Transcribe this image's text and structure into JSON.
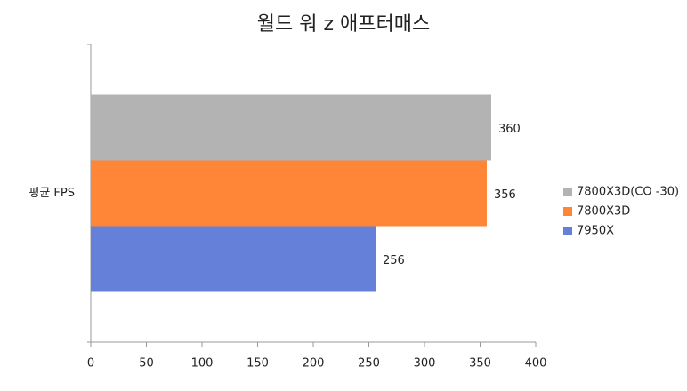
{
  "chart_data": {
    "type": "bar",
    "orientation": "horizontal",
    "title": "월드 워 z 애프터매스",
    "categories": [
      "평균 FPS"
    ],
    "series": [
      {
        "name": "7800X3D(CO -30)",
        "color": "#b3b3b3",
        "values": [
          360
        ]
      },
      {
        "name": "7800X3D",
        "color": "#fe8636",
        "values": [
          356
        ]
      },
      {
        "name": "7950X",
        "color": "#6480d8",
        "values": [
          256
        ]
      }
    ],
    "xlim": [
      0,
      400
    ],
    "xticks": [
      0,
      50,
      100,
      150,
      200,
      250,
      300,
      350,
      400
    ],
    "grid": false,
    "legend": "right",
    "data_labels": true
  }
}
